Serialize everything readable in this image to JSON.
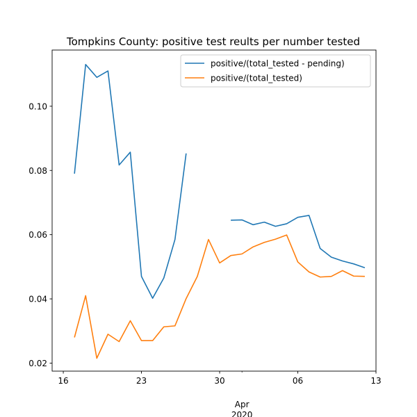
{
  "chart_data": {
    "type": "line",
    "title": "Tompkins County: positive test reults per number tested",
    "xlabel": "",
    "ylabel": "",
    "x_axis": {
      "type": "date",
      "range": [
        "2020-03-15",
        "2020-04-13"
      ],
      "major_ticks": [
        {
          "date": "2020-03-16",
          "label": "16"
        },
        {
          "date": "2020-03-23",
          "label": "23"
        },
        {
          "date": "2020-03-30",
          "label": "30"
        },
        {
          "date": "2020-04-06",
          "label": "06"
        },
        {
          "date": "2020-04-13",
          "label": "13"
        }
      ],
      "minor_ticks": [
        "2020-04-01"
      ],
      "sub_label": "Apr\n2020"
    },
    "y_axis": {
      "range": [
        0.0175,
        0.1175
      ],
      "ticks": [
        0.02,
        0.04,
        0.06,
        0.08,
        0.1
      ],
      "tick_labels": [
        "0.02",
        "0.04",
        "0.06",
        "0.08",
        "0.10"
      ]
    },
    "grid": false,
    "legend_position": "top-right",
    "series": [
      {
        "name": "positive/(total_tested - pending)",
        "color": "#1f77b4",
        "points": [
          [
            "2020-03-17",
            0.079
          ],
          [
            "2020-03-18",
            0.113
          ],
          [
            "2020-03-19",
            0.109
          ],
          [
            "2020-03-20",
            0.111
          ],
          [
            "2020-03-21",
            0.0817
          ],
          [
            "2020-03-22",
            0.0857
          ],
          [
            "2020-03-23",
            0.047
          ],
          [
            "2020-03-24",
            0.0402
          ],
          [
            "2020-03-25",
            0.0465
          ],
          [
            "2020-03-26",
            0.0585
          ],
          [
            "2020-03-27",
            0.0853
          ],
          [
            "2020-03-28",
            null
          ],
          [
            "2020-03-29",
            null
          ],
          [
            "2020-03-30",
            null
          ],
          [
            "2020-03-31",
            0.0645
          ],
          [
            "2020-04-01",
            0.0646
          ],
          [
            "2020-04-02",
            0.0631
          ],
          [
            "2020-04-03",
            0.0639
          ],
          [
            "2020-04-04",
            0.0626
          ],
          [
            "2020-04-05",
            0.0634
          ],
          [
            "2020-04-06",
            0.0654
          ],
          [
            "2020-04-07",
            0.066
          ],
          [
            "2020-04-08",
            0.0557
          ],
          [
            "2020-04-09",
            0.053
          ],
          [
            "2020-04-10",
            0.0518
          ],
          [
            "2020-04-11",
            0.0509
          ],
          [
            "2020-04-12",
            0.0497
          ]
        ]
      },
      {
        "name": "positive/(total_tested)",
        "color": "#ff7f0e",
        "points": [
          [
            "2020-03-17",
            0.028
          ],
          [
            "2020-03-18",
            0.041
          ],
          [
            "2020-03-19",
            0.0215
          ],
          [
            "2020-03-20",
            0.029
          ],
          [
            "2020-03-21",
            0.0267
          ],
          [
            "2020-03-22",
            0.0332
          ],
          [
            "2020-03-23",
            0.027
          ],
          [
            "2020-03-24",
            0.027
          ],
          [
            "2020-03-25",
            0.0313
          ],
          [
            "2020-03-26",
            0.0316
          ],
          [
            "2020-03-27",
            0.0401
          ],
          [
            "2020-03-28",
            0.047
          ],
          [
            "2020-03-29",
            0.0585
          ],
          [
            "2020-03-30",
            0.0512
          ],
          [
            "2020-03-31",
            0.0535
          ],
          [
            "2020-04-01",
            0.054
          ],
          [
            "2020-04-02",
            0.0562
          ],
          [
            "2020-04-03",
            0.0576
          ],
          [
            "2020-04-04",
            0.0586
          ],
          [
            "2020-04-05",
            0.0599
          ],
          [
            "2020-04-06",
            0.0515
          ],
          [
            "2020-04-07",
            0.0484
          ],
          [
            "2020-04-08",
            0.0468
          ],
          [
            "2020-04-09",
            0.047
          ],
          [
            "2020-04-10",
            0.0488
          ],
          [
            "2020-04-11",
            0.0471
          ],
          [
            "2020-04-12",
            0.047
          ]
        ]
      }
    ]
  }
}
